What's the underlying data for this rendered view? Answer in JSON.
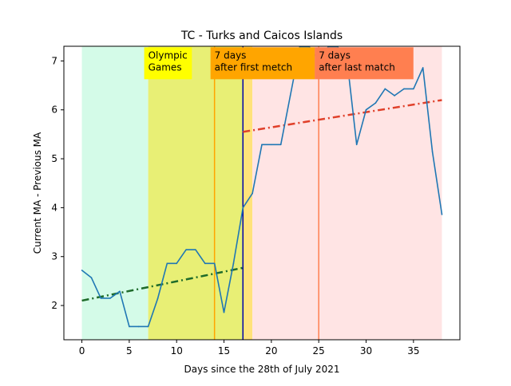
{
  "chart_data": {
    "type": "line",
    "title": "TC - Turks and Caicos Islands",
    "xlabel": "Days since the 28th of July 2021",
    "ylabel": "Current MA - Previous MA",
    "xlim": [
      -1.9,
      39.9
    ],
    "ylim": [
      1.3,
      7.3
    ],
    "xticks": [
      0,
      5,
      10,
      15,
      20,
      25,
      30,
      35
    ],
    "yticks": [
      2,
      3,
      4,
      5,
      6,
      7
    ],
    "grid": false,
    "series": [
      {
        "color": "#1f77b4",
        "x": [
          0,
          1,
          2,
          3,
          4,
          5,
          6,
          7,
          8,
          9,
          10,
          11,
          12,
          13,
          14,
          15,
          16,
          17,
          18,
          19,
          20,
          21,
          22,
          23,
          24,
          25,
          26,
          27,
          28,
          29,
          30,
          31,
          32,
          33,
          34,
          35,
          36,
          37,
          38
        ],
        "y": [
          2.72,
          2.57,
          2.15,
          2.15,
          2.29,
          1.57,
          1.57,
          1.57,
          2.14,
          2.86,
          2.86,
          3.14,
          3.14,
          2.86,
          2.86,
          1.86,
          2.86,
          4.0,
          4.29,
          5.29,
          5.29,
          5.29,
          6.29,
          7.29,
          7.29,
          7.0,
          7.29,
          7.29,
          7.0,
          5.29,
          6.0,
          6.14,
          6.43,
          6.29,
          6.43,
          6.43,
          6.86,
          5.14,
          3.86
        ]
      }
    ],
    "regions": [
      {
        "x0": 0,
        "x1": 7,
        "color": "#d4fbe8"
      },
      {
        "x0": 7,
        "x1": 17,
        "color": "#e8ef75"
      },
      {
        "x0": 17,
        "x1": 18,
        "color": "#ffe27a"
      },
      {
        "x0": 18,
        "x1": 38,
        "color": "#ffe4e4"
      }
    ],
    "vlines": [
      {
        "x": 14,
        "color": "#ffa500"
      },
      {
        "x": 17,
        "color": "#0000aa"
      },
      {
        "x": 25,
        "color": "#ff7f50"
      }
    ],
    "trendlines": [
      {
        "x": [
          0,
          17
        ],
        "y": [
          2.1,
          2.77
        ],
        "color": "#1e6b2a"
      },
      {
        "x": [
          17,
          38
        ],
        "y": [
          5.55,
          6.2
        ],
        "color": "#e0402a"
      }
    ],
    "annotations": [
      {
        "lines": [
          "Olympic",
          "Games"
        ],
        "x": 7,
        "y": 7.05,
        "bg": "#ffff00"
      },
      {
        "lines": [
          "7 days",
          "after first metch"
        ],
        "x": 14,
        "y": 7.05,
        "bg": "#ffa500"
      },
      {
        "lines": [
          "7 days",
          "after last match"
        ],
        "x": 25,
        "y": 7.05,
        "bg": "#ff7f50"
      }
    ]
  }
}
